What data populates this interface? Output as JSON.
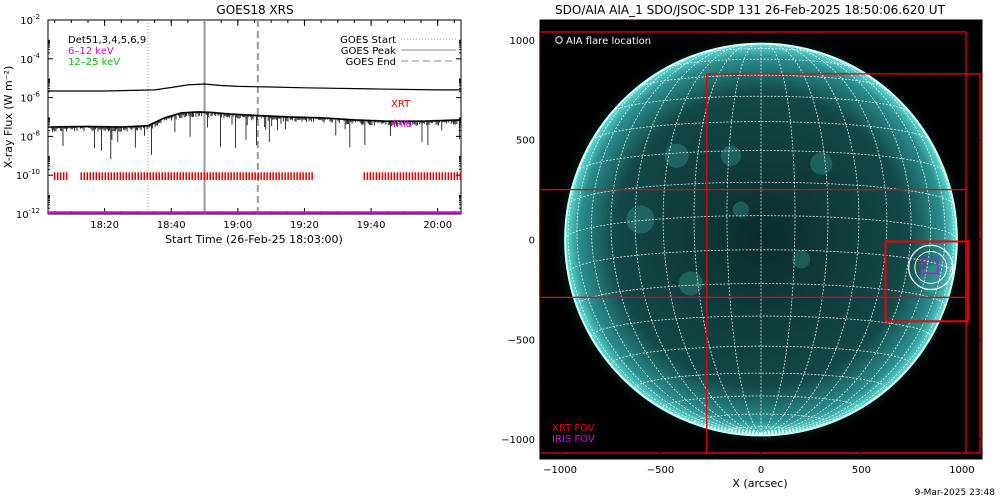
{
  "footer_date": "9-Mar-2025 23:48",
  "chart_data": [
    {
      "type": "line",
      "title": "GOES18 XRS",
      "xlabel": "Start Time (26-Feb-25 18:03:00)",
      "ylabel": "X-ray Flux (W m⁻²)",
      "log_y": true,
      "xlim": [
        "18:03",
        "20:07"
      ],
      "ylim": [
        1e-12,
        0.01
      ],
      "x_ticks": [
        "18:20",
        "18:40",
        "19:00",
        "19:20",
        "19:40",
        "20:00"
      ],
      "y_ticks": [
        {
          "base": "10",
          "exp": "-2",
          "value": -2
        },
        {
          "base": "10",
          "exp": "-4",
          "value": -4
        },
        {
          "base": "10",
          "exp": "-6",
          "value": -6
        },
        {
          "base": "10",
          "exp": "-8",
          "value": -8
        },
        {
          "base": "10",
          "exp": "-10",
          "value": -10
        },
        {
          "base": "10",
          "exp": "-12",
          "value": -12
        }
      ],
      "left_legend": [
        {
          "label": "Det51,3,4,5,6,9",
          "color": "#000000"
        },
        {
          "label": "6–12 keV",
          "color": "#e000e0"
        },
        {
          "label": "12–25 keV",
          "color": "#00c000"
        }
      ],
      "right_legend": [
        {
          "label": "GOES Start",
          "style": "dotted",
          "color": "#888888"
        },
        {
          "label": "GOES Peak",
          "style": "solid",
          "color": "#888888"
        },
        {
          "label": "GOES End",
          "style": "dashed",
          "color": "#888888"
        }
      ],
      "event_lines": [
        {
          "name": "GOES Start",
          "time": "18:33"
        },
        {
          "name": "GOES Peak",
          "time": "18:50"
        },
        {
          "name": "GOES End",
          "time": "19:06"
        }
      ],
      "series": [
        {
          "name": "GOES long (upper)",
          "color": "#000000",
          "x": [
            "18:03",
            "18:20",
            "18:35",
            "18:40",
            "18:45",
            "18:50",
            "18:55",
            "19:00",
            "19:10",
            "19:20",
            "19:40",
            "20:00",
            "20:07"
          ],
          "y": [
            2.2e-06,
            2.2e-06,
            2.5e-06,
            3.3e-06,
            4.5e-06,
            5e-06,
            4.2e-06,
            3.8e-06,
            3.5e-06,
            3.2e-06,
            2.8e-06,
            2.5e-06,
            2.5e-06
          ]
        },
        {
          "name": "GOES short (lower)",
          "color": "#000000",
          "x": [
            "18:03",
            "18:15",
            "18:25",
            "18:33",
            "18:38",
            "18:43",
            "18:48",
            "18:52",
            "18:58",
            "19:05",
            "19:15",
            "19:25",
            "19:35",
            "19:45",
            "19:55",
            "20:07"
          ],
          "y": [
            3e-08,
            3.2e-08,
            3e-08,
            3.5e-08,
            9e-08,
            1.6e-07,
            1.8e-07,
            1.7e-07,
            1.4e-07,
            1.2e-07,
            1e-07,
            9e-08,
            7e-08,
            6e-08,
            6e-08,
            7e-08
          ]
        }
      ],
      "annotations": [
        {
          "label": "XRT",
          "color": "#dd0000"
        },
        {
          "label": "IRIS",
          "color": "#dd00dd"
        }
      ],
      "xrt_coverage": [
        {
          "start": "18:05",
          "end": "18:09"
        },
        {
          "start": "18:13",
          "end": "19:23"
        },
        {
          "start": "19:38",
          "end": "20:07"
        }
      ],
      "iris_level": 1.2e-12
    },
    {
      "type": "scatter",
      "title": "SDO/AIA AIA_1 SDO/JSOC-SDP 131 26-Feb-2025 18:50:06.620 UT",
      "xlabel": "X (arcsec)",
      "ylabel": "",
      "xlim": [
        -1100,
        1100
      ],
      "ylim": [
        -1100,
        1100
      ],
      "x_ticks": [
        "−1000",
        "−500",
        "0",
        "500",
        "1000"
      ],
      "y_ticks": [
        "1000",
        "500",
        "0",
        "−500",
        "−1000"
      ],
      "tick_values": [
        -1000,
        -500,
        0,
        500,
        1000
      ],
      "legend_top": "AIA flare location",
      "legend_bottom": [
        {
          "label": "XRT FOV",
          "color": "#ee0000"
        },
        {
          "label": "IRIS FOV",
          "color": "#dd00dd"
        }
      ],
      "solar_radius_arcsec": 975,
      "flare_location": {
        "x": 845,
        "y": -140
      },
      "flare_circle_radius_arcsec": 110,
      "xrt_fov_boxes": [
        {
          "x0": -1100,
          "x1": 1020,
          "y0": -1070,
          "y1": 1040
        },
        {
          "x0": -270,
          "x1": 1090,
          "y0": -1070,
          "y1": 830
        },
        {
          "x0": -1100,
          "x1": 1020,
          "y0": -290,
          "y1": 250
        },
        {
          "x0": 620,
          "x1": 1030,
          "y0": -410,
          "y1": -10
        }
      ],
      "iris_fov_box": {
        "x0": 800,
        "x1": 880,
        "y0": -170,
        "y1": -100
      }
    }
  ]
}
